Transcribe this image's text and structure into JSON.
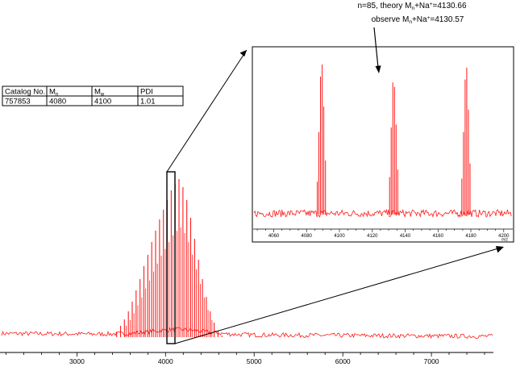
{
  "spec_table": {
    "headers": [
      "Catalog No.",
      "Mn",
      "Mw",
      "PDI"
    ],
    "header_subscripts": [
      "",
      "n",
      "w",
      ""
    ],
    "row": [
      "757853",
      "4080",
      "4100",
      "1.01"
    ]
  },
  "annotation": {
    "line1_prefix": "n=85, theory M",
    "line1_sub": "n",
    "line1_mid": "+Na",
    "line1_sup": "+",
    "line1_suffix": "=4130.66",
    "line2_prefix": "observe M",
    "line2_sub": "n",
    "line2_mid": "+Na",
    "line2_sup": "+",
    "line2_suffix": "=4130.57"
  },
  "colors": {
    "trace": "#ff1a1a",
    "axis": "#000000"
  },
  "chart_data": [
    {
      "type": "line",
      "title": "",
      "xlabel": "",
      "ylabel": "",
      "xlim": [
        2150,
        7700
      ],
      "ylim": [
        0,
        1
      ],
      "xticks": [
        3000,
        4000,
        5000,
        6000,
        7000
      ],
      "peak_spacing_mz": 44,
      "series": [
        {
          "x": [
            3448,
            3492,
            3536,
            3580,
            3624,
            3668,
            3712,
            3756,
            3800,
            3844,
            3888,
            3932,
            3976,
            4020,
            4064,
            4108,
            4152,
            4196,
            4240,
            4284,
            4328,
            4372,
            4416,
            4460,
            4504,
            4548,
            4592,
            4636
          ],
          "y": [
            0.05,
            0.09,
            0.13,
            0.18,
            0.24,
            0.31,
            0.38,
            0.46,
            0.53,
            0.61,
            0.68,
            0.75,
            0.81,
            0.87,
            0.93,
            0.97,
            1.0,
            0.95,
            0.87,
            0.76,
            0.63,
            0.5,
            0.38,
            0.27,
            0.18,
            0.11,
            0.06,
            0.03
          ]
        }
      ]
    },
    {
      "type": "line",
      "title": "",
      "xlabel": "m/z",
      "ylabel": "",
      "xlim": [
        4048,
        4205
      ],
      "ylim": [
        0,
        1
      ],
      "xticks": [
        4060,
        4080,
        4100,
        4120,
        4140,
        4160,
        4180,
        4200
      ],
      "series": [
        {
          "x": [
            4086.5,
            4087.5,
            4088.5,
            4089.5,
            4090.5,
            4091.5,
            4130.5,
            4131.5,
            4132.5,
            4133.5,
            4134.5,
            4135.5,
            4174.5,
            4175.5,
            4176.5,
            4177.5,
            4178.5,
            4179.5
          ],
          "y": [
            0.22,
            0.55,
            0.92,
            1.0,
            0.72,
            0.36,
            0.25,
            0.58,
            0.88,
            0.85,
            0.6,
            0.3,
            0.24,
            0.55,
            0.9,
            0.98,
            0.7,
            0.34
          ]
        }
      ]
    }
  ]
}
